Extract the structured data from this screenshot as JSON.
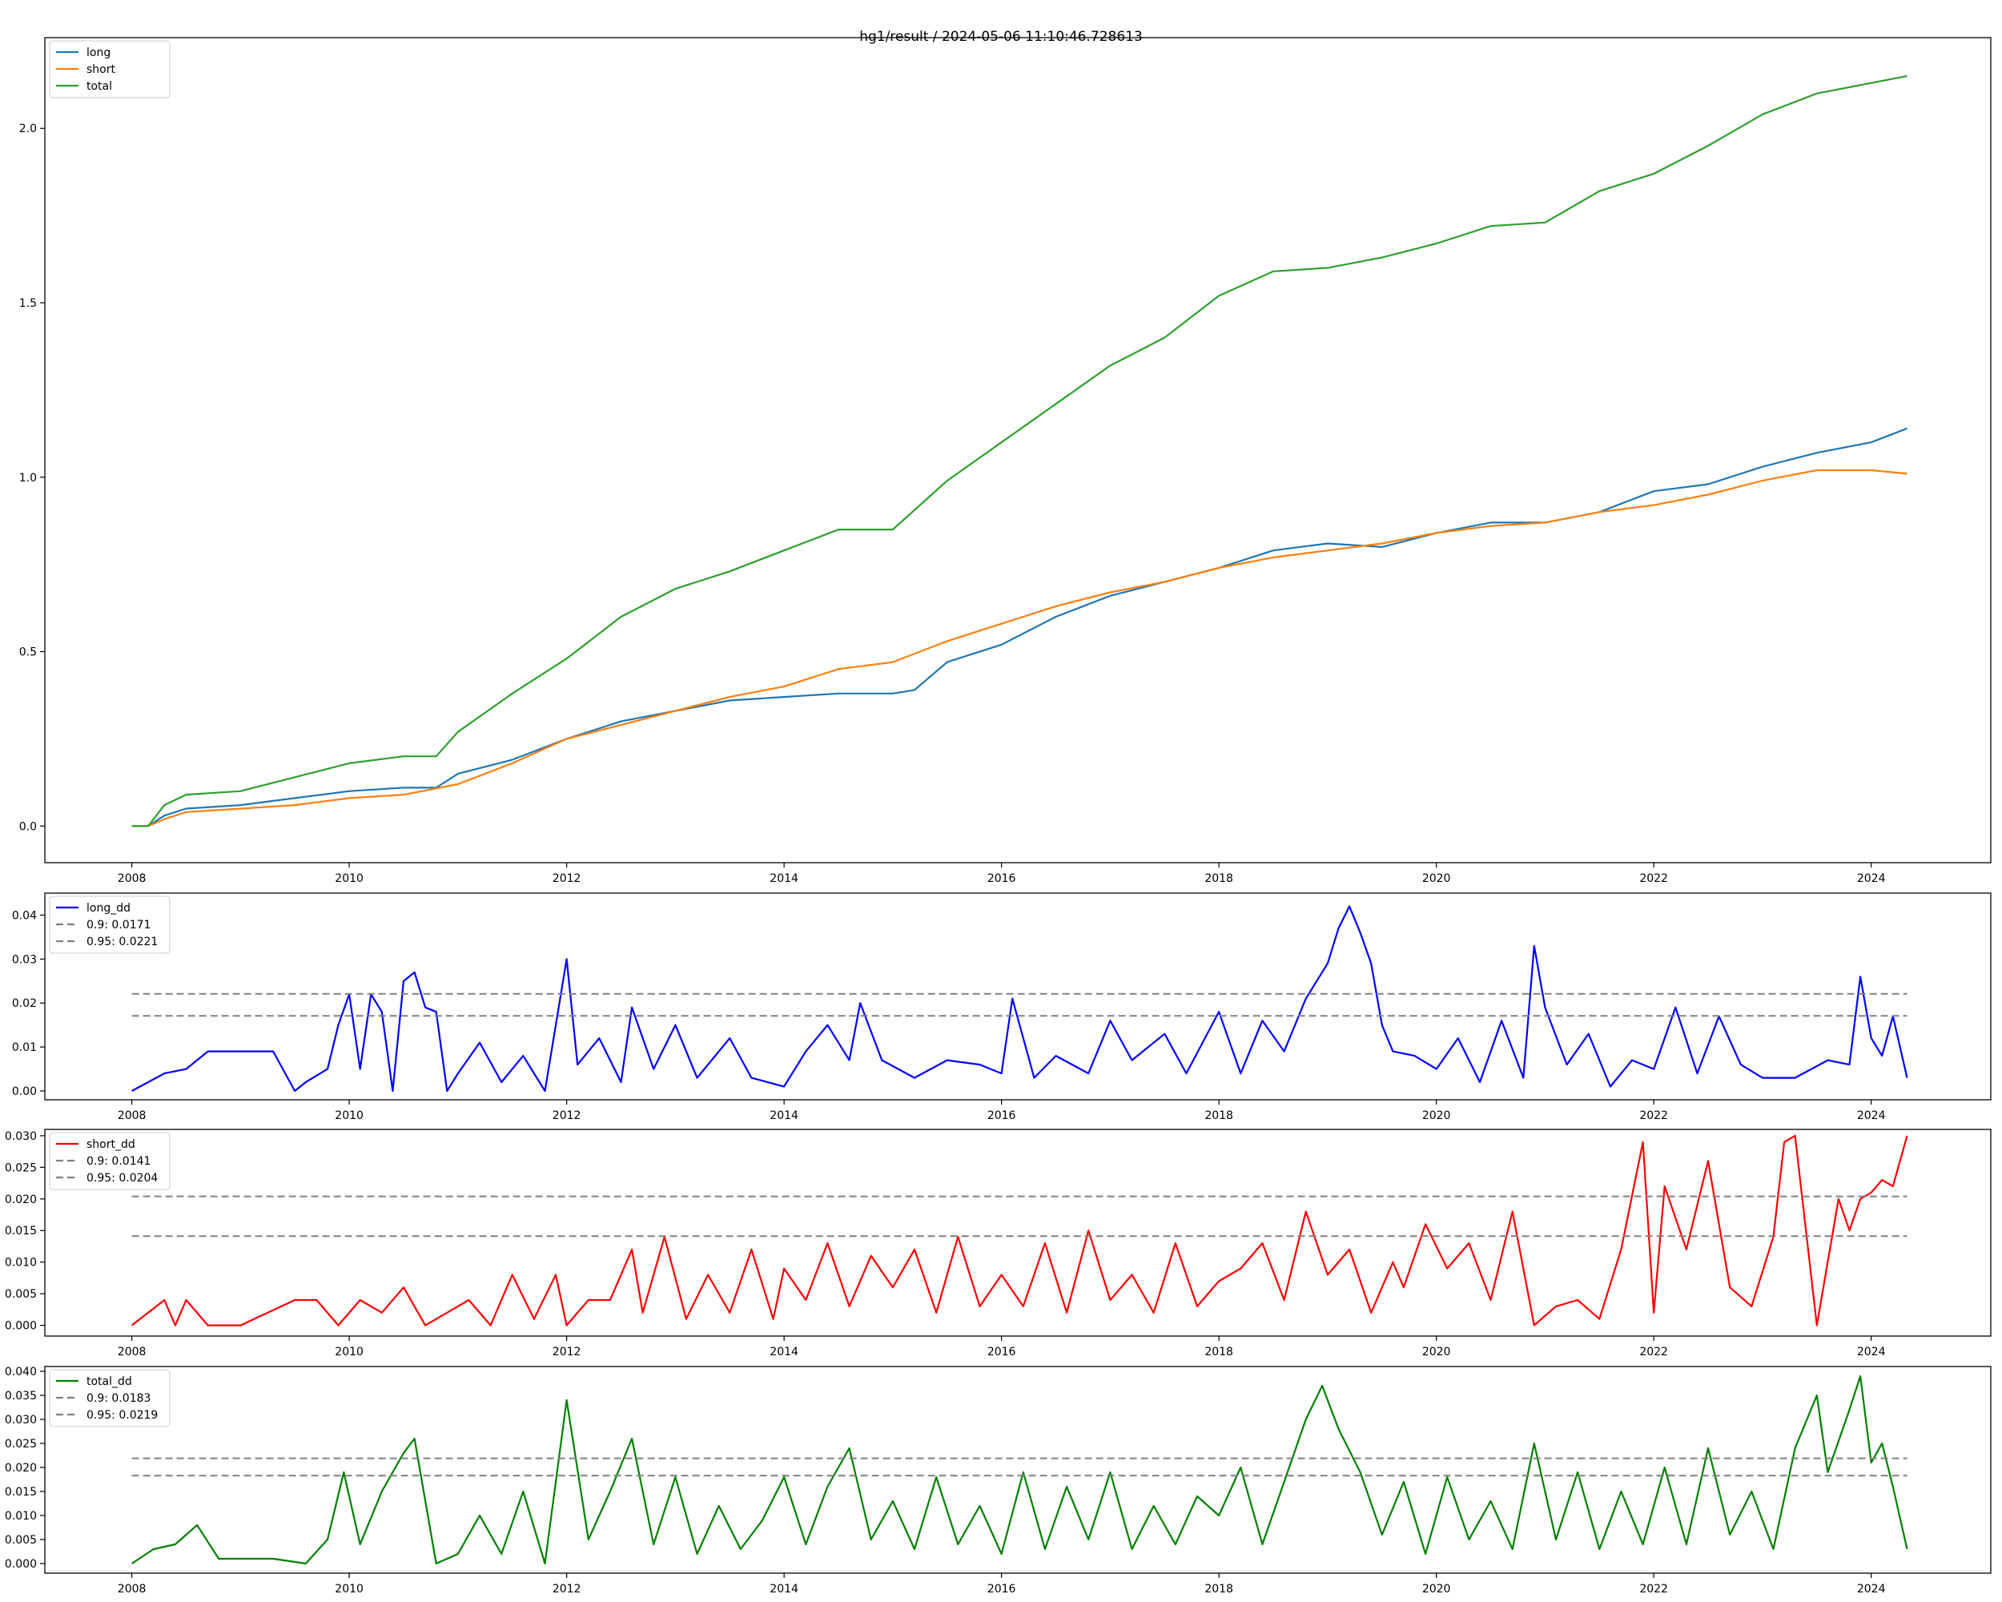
{
  "figure_title": "hg1/result / 2024-05-06 11:10:46.728613",
  "chart_data": [
    {
      "id": "pnl",
      "type": "line",
      "xlabel": "",
      "ylabel": "",
      "xlim": [
        2007.2,
        2025.1
      ],
      "ylim": [
        -0.105,
        2.26
      ],
      "xticks": [
        2008,
        2010,
        2012,
        2014,
        2016,
        2018,
        2020,
        2022,
        2024
      ],
      "yticks": [
        0.0,
        0.5,
        1.0,
        1.5,
        2.0
      ],
      "ytick_labels": [
        "0.0",
        "0.5",
        "1.0",
        "1.5",
        "2.0"
      ],
      "legend": "top-left",
      "series": [
        {
          "name": "long",
          "color": "#1f77b4",
          "x": [
            2008.0,
            2008.15,
            2008.3,
            2008.5,
            2009.0,
            2009.5,
            2010.0,
            2010.5,
            2010.8,
            2011.0,
            2011.5,
            2012.0,
            2012.5,
            2013.0,
            2013.5,
            2014.0,
            2014.5,
            2015.0,
            2015.2,
            2015.5,
            2016.0,
            2016.5,
            2017.0,
            2017.5,
            2018.0,
            2018.5,
            2019.0,
            2019.5,
            2020.0,
            2020.5,
            2021.0,
            2021.5,
            2022.0,
            2022.5,
            2023.0,
            2023.5,
            2024.0,
            2024.33
          ],
          "y": [
            0.0,
            0.0,
            0.03,
            0.05,
            0.06,
            0.08,
            0.1,
            0.11,
            0.11,
            0.15,
            0.19,
            0.25,
            0.3,
            0.33,
            0.36,
            0.37,
            0.38,
            0.38,
            0.39,
            0.47,
            0.52,
            0.6,
            0.66,
            0.7,
            0.74,
            0.79,
            0.81,
            0.8,
            0.84,
            0.87,
            0.87,
            0.9,
            0.96,
            0.98,
            1.03,
            1.07,
            1.1,
            1.14
          ]
        },
        {
          "name": "short",
          "color": "#ff7f0e",
          "x": [
            2008.0,
            2008.15,
            2008.3,
            2008.5,
            2009.0,
            2009.5,
            2010.0,
            2010.5,
            2011.0,
            2011.5,
            2012.0,
            2012.5,
            2013.0,
            2013.5,
            2014.0,
            2014.5,
            2015.0,
            2015.5,
            2016.0,
            2016.5,
            2017.0,
            2017.5,
            2018.0,
            2018.5,
            2019.0,
            2019.5,
            2020.0,
            2020.5,
            2021.0,
            2021.5,
            2022.0,
            2022.5,
            2023.0,
            2023.5,
            2024.0,
            2024.33
          ],
          "y": [
            0.0,
            0.0,
            0.02,
            0.04,
            0.05,
            0.06,
            0.08,
            0.09,
            0.12,
            0.18,
            0.25,
            0.29,
            0.33,
            0.37,
            0.4,
            0.45,
            0.47,
            0.53,
            0.58,
            0.63,
            0.67,
            0.7,
            0.74,
            0.77,
            0.79,
            0.81,
            0.84,
            0.86,
            0.87,
            0.9,
            0.92,
            0.95,
            0.99,
            1.02,
            1.02,
            1.01
          ]
        },
        {
          "name": "total",
          "color": "#2ca02c",
          "x": [
            2008.0,
            2008.15,
            2008.3,
            2008.5,
            2009.0,
            2009.5,
            2010.0,
            2010.5,
            2010.8,
            2011.0,
            2011.5,
            2012.0,
            2012.5,
            2013.0,
            2013.5,
            2014.0,
            2014.5,
            2015.0,
            2015.5,
            2016.0,
            2016.5,
            2017.0,
            2017.5,
            2018.0,
            2018.5,
            2019.0,
            2019.5,
            2020.0,
            2020.5,
            2021.0,
            2021.5,
            2022.0,
            2022.5,
            2023.0,
            2023.5,
            2024.0,
            2024.33
          ],
          "y": [
            0.0,
            0.0,
            0.06,
            0.09,
            0.1,
            0.14,
            0.18,
            0.2,
            0.2,
            0.27,
            0.38,
            0.48,
            0.6,
            0.68,
            0.73,
            0.79,
            0.85,
            0.85,
            0.99,
            1.1,
            1.21,
            1.32,
            1.4,
            1.52,
            1.59,
            1.6,
            1.63,
            1.67,
            1.72,
            1.73,
            1.82,
            1.87,
            1.95,
            2.04,
            2.1,
            2.13,
            2.15
          ]
        }
      ]
    },
    {
      "id": "long_dd",
      "type": "line",
      "xlabel": "",
      "ylabel": "",
      "xlim": [
        2007.2,
        2025.1
      ],
      "ylim": [
        -0.002,
        0.045
      ],
      "xticks": [
        2008,
        2010,
        2012,
        2014,
        2016,
        2018,
        2020,
        2022,
        2024
      ],
      "yticks": [
        0.0,
        0.01,
        0.02,
        0.03,
        0.04
      ],
      "ytick_labels": [
        "0.00",
        "0.01",
        "0.02",
        "0.03",
        "0.04"
      ],
      "legend": "top-left",
      "series": [
        {
          "name": "long_dd",
          "color": "#0000ff",
          "x": [
            2008.0,
            2008.3,
            2008.5,
            2008.7,
            2009.3,
            2009.5,
            2009.6,
            2009.8,
            2009.9,
            2010.0,
            2010.1,
            2010.2,
            2010.3,
            2010.4,
            2010.5,
            2010.6,
            2010.7,
            2010.8,
            2010.9,
            2011.0,
            2011.2,
            2011.4,
            2011.6,
            2011.8,
            2012.0,
            2012.1,
            2012.3,
            2012.5,
            2012.6,
            2012.8,
            2013.0,
            2013.2,
            2013.5,
            2013.7,
            2014.0,
            2014.2,
            2014.4,
            2014.6,
            2014.7,
            2014.9,
            2015.2,
            2015.5,
            2015.8,
            2016.0,
            2016.1,
            2016.3,
            2016.5,
            2016.8,
            2017.0,
            2017.2,
            2017.5,
            2017.7,
            2018.0,
            2018.2,
            2018.4,
            2018.6,
            2018.8,
            2019.0,
            2019.1,
            2019.2,
            2019.3,
            2019.4,
            2019.5,
            2019.6,
            2019.8,
            2020.0,
            2020.2,
            2020.4,
            2020.6,
            2020.8,
            2020.9,
            2021.0,
            2021.2,
            2021.4,
            2021.6,
            2021.8,
            2022.0,
            2022.2,
            2022.4,
            2022.6,
            2022.8,
            2023.0,
            2023.3,
            2023.6,
            2023.8,
            2023.9,
            2024.0,
            2024.1,
            2024.2,
            2024.33
          ],
          "y": [
            0.0,
            0.004,
            0.005,
            0.009,
            0.009,
            0.0,
            0.002,
            0.005,
            0.015,
            0.022,
            0.005,
            0.022,
            0.018,
            0.0,
            0.025,
            0.027,
            0.019,
            0.018,
            0.0,
            0.004,
            0.011,
            0.002,
            0.008,
            0.0,
            0.03,
            0.006,
            0.012,
            0.002,
            0.019,
            0.005,
            0.015,
            0.003,
            0.012,
            0.003,
            0.001,
            0.009,
            0.015,
            0.007,
            0.02,
            0.007,
            0.003,
            0.007,
            0.006,
            0.004,
            0.021,
            0.003,
            0.008,
            0.004,
            0.016,
            0.007,
            0.013,
            0.004,
            0.018,
            0.004,
            0.016,
            0.009,
            0.021,
            0.029,
            0.037,
            0.042,
            0.036,
            0.029,
            0.015,
            0.009,
            0.008,
            0.005,
            0.012,
            0.002,
            0.016,
            0.003,
            0.033,
            0.019,
            0.006,
            0.013,
            0.001,
            0.007,
            0.005,
            0.019,
            0.004,
            0.017,
            0.006,
            0.003,
            0.003,
            0.007,
            0.006,
            0.026,
            0.012,
            0.008,
            0.017,
            0.003
          ]
        },
        {
          "name": "0.9: 0.0171",
          "color": "#808080",
          "dashed": true,
          "x": [
            2008.0,
            2024.33
          ],
          "y": [
            0.0171,
            0.0171
          ]
        },
        {
          "name": "0.95: 0.0221",
          "color": "#808080",
          "dashed": true,
          "x": [
            2008.0,
            2024.33
          ],
          "y": [
            0.0221,
            0.0221
          ]
        }
      ]
    },
    {
      "id": "short_dd",
      "type": "line",
      "xlabel": "",
      "ylabel": "",
      "xlim": [
        2007.2,
        2025.1
      ],
      "ylim": [
        -0.0017,
        0.031
      ],
      "xticks": [
        2008,
        2010,
        2012,
        2014,
        2016,
        2018,
        2020,
        2022,
        2024
      ],
      "yticks": [
        0.0,
        0.005,
        0.01,
        0.015,
        0.02,
        0.025,
        0.03
      ],
      "ytick_labels": [
        "0.000",
        "0.005",
        "0.010",
        "0.015",
        "0.020",
        "0.025",
        "0.030"
      ],
      "legend": "top-left",
      "series": [
        {
          "name": "short_dd",
          "color": "#ff0000",
          "x": [
            2008.0,
            2008.3,
            2008.4,
            2008.5,
            2008.7,
            2009.0,
            2009.5,
            2009.7,
            2009.9,
            2010.1,
            2010.3,
            2010.5,
            2010.7,
            2010.9,
            2011.1,
            2011.3,
            2011.5,
            2011.7,
            2011.9,
            2012.0,
            2012.2,
            2012.4,
            2012.6,
            2012.7,
            2012.9,
            2013.1,
            2013.3,
            2013.5,
            2013.7,
            2013.9,
            2014.0,
            2014.2,
            2014.4,
            2014.6,
            2014.8,
            2015.0,
            2015.2,
            2015.4,
            2015.6,
            2015.8,
            2016.0,
            2016.2,
            2016.4,
            2016.6,
            2016.8,
            2017.0,
            2017.2,
            2017.4,
            2017.6,
            2017.8,
            2018.0,
            2018.2,
            2018.4,
            2018.6,
            2018.8,
            2019.0,
            2019.2,
            2019.4,
            2019.6,
            2019.7,
            2019.9,
            2020.1,
            2020.3,
            2020.5,
            2020.7,
            2020.9,
            2021.1,
            2021.3,
            2021.5,
            2021.7,
            2021.9,
            2022.0,
            2022.1,
            2022.3,
            2022.5,
            2022.7,
            2022.9,
            2023.1,
            2023.2,
            2023.3,
            2023.5,
            2023.7,
            2023.8,
            2023.9,
            2024.0,
            2024.1,
            2024.2,
            2024.33
          ],
          "y": [
            0.0,
            0.004,
            0.0,
            0.004,
            0.0,
            0.0,
            0.004,
            0.004,
            0.0,
            0.004,
            0.002,
            0.006,
            0.0,
            0.002,
            0.004,
            0.0,
            0.008,
            0.001,
            0.008,
            0.0,
            0.004,
            0.004,
            0.012,
            0.002,
            0.014,
            0.001,
            0.008,
            0.002,
            0.012,
            0.001,
            0.009,
            0.004,
            0.013,
            0.003,
            0.011,
            0.006,
            0.012,
            0.002,
            0.014,
            0.003,
            0.008,
            0.003,
            0.013,
            0.002,
            0.015,
            0.004,
            0.008,
            0.002,
            0.013,
            0.003,
            0.007,
            0.009,
            0.013,
            0.004,
            0.018,
            0.008,
            0.012,
            0.002,
            0.01,
            0.006,
            0.016,
            0.009,
            0.013,
            0.004,
            0.018,
            0.0,
            0.003,
            0.004,
            0.001,
            0.012,
            0.029,
            0.002,
            0.022,
            0.012,
            0.026,
            0.006,
            0.003,
            0.014,
            0.029,
            0.03,
            0.0,
            0.02,
            0.015,
            0.02,
            0.021,
            0.023,
            0.022,
            0.03
          ]
        },
        {
          "name": "0.9: 0.0141",
          "color": "#808080",
          "dashed": true,
          "x": [
            2008.0,
            2024.33
          ],
          "y": [
            0.0141,
            0.0141
          ]
        },
        {
          "name": "0.95: 0.0204",
          "color": "#808080",
          "dashed": true,
          "x": [
            2008.0,
            2024.33
          ],
          "y": [
            0.0204,
            0.0204
          ]
        }
      ]
    },
    {
      "id": "total_dd",
      "type": "line",
      "xlabel": "",
      "ylabel": "",
      "xlim": [
        2007.2,
        2025.1
      ],
      "ylim": [
        -0.002,
        0.041
      ],
      "xticks": [
        2008,
        2010,
        2012,
        2014,
        2016,
        2018,
        2020,
        2022,
        2024
      ],
      "yticks": [
        0.0,
        0.005,
        0.01,
        0.015,
        0.02,
        0.025,
        0.03,
        0.035,
        0.04
      ],
      "ytick_labels": [
        "0.000",
        "0.005",
        "0.010",
        "0.015",
        "0.020",
        "0.025",
        "0.030",
        "0.035",
        "0.040"
      ],
      "legend": "top-left",
      "series": [
        {
          "name": "total_dd",
          "color": "#008000",
          "x": [
            2008.0,
            2008.2,
            2008.4,
            2008.6,
            2008.8,
            2009.0,
            2009.3,
            2009.6,
            2009.8,
            2009.95,
            2010.1,
            2010.3,
            2010.5,
            2010.6,
            2010.8,
            2011.0,
            2011.2,
            2011.4,
            2011.6,
            2011.8,
            2012.0,
            2012.2,
            2012.4,
            2012.6,
            2012.8,
            2013.0,
            2013.2,
            2013.4,
            2013.6,
            2013.8,
            2014.0,
            2014.2,
            2014.4,
            2014.6,
            2014.8,
            2015.0,
            2015.2,
            2015.4,
            2015.6,
            2015.8,
            2016.0,
            2016.2,
            2016.4,
            2016.6,
            2016.8,
            2017.0,
            2017.2,
            2017.4,
            2017.6,
            2017.8,
            2018.0,
            2018.2,
            2018.4,
            2018.6,
            2018.8,
            2018.95,
            2019.1,
            2019.3,
            2019.5,
            2019.7,
            2019.9,
            2020.1,
            2020.3,
            2020.5,
            2020.7,
            2020.9,
            2021.1,
            2021.3,
            2021.5,
            2021.7,
            2021.9,
            2022.1,
            2022.3,
            2022.5,
            2022.7,
            2022.9,
            2023.1,
            2023.3,
            2023.5,
            2023.6,
            2023.8,
            2023.9,
            2024.0,
            2024.1,
            2024.2,
            2024.33
          ],
          "y": [
            0.0,
            0.003,
            0.004,
            0.008,
            0.001,
            0.001,
            0.001,
            0.0,
            0.005,
            0.019,
            0.004,
            0.015,
            0.023,
            0.026,
            0.0,
            0.002,
            0.01,
            0.002,
            0.015,
            0.0,
            0.034,
            0.005,
            0.015,
            0.026,
            0.004,
            0.018,
            0.002,
            0.012,
            0.003,
            0.009,
            0.018,
            0.004,
            0.016,
            0.024,
            0.005,
            0.013,
            0.003,
            0.018,
            0.004,
            0.012,
            0.002,
            0.019,
            0.003,
            0.016,
            0.005,
            0.019,
            0.003,
            0.012,
            0.004,
            0.014,
            0.01,
            0.02,
            0.004,
            0.017,
            0.03,
            0.037,
            0.028,
            0.019,
            0.006,
            0.017,
            0.002,
            0.018,
            0.005,
            0.013,
            0.003,
            0.025,
            0.005,
            0.019,
            0.003,
            0.015,
            0.004,
            0.02,
            0.004,
            0.024,
            0.006,
            0.015,
            0.003,
            0.024,
            0.035,
            0.019,
            0.032,
            0.039,
            0.021,
            0.025,
            0.016,
            0.003
          ]
        },
        {
          "name": "0.9: 0.0183",
          "color": "#808080",
          "dashed": true,
          "x": [
            2008.0,
            2024.33
          ],
          "y": [
            0.0183,
            0.0183
          ]
        },
        {
          "name": "0.95: 0.0219",
          "color": "#808080",
          "dashed": true,
          "x": [
            2008.0,
            2024.33
          ],
          "y": [
            0.0219,
            0.0219
          ]
        }
      ]
    }
  ]
}
